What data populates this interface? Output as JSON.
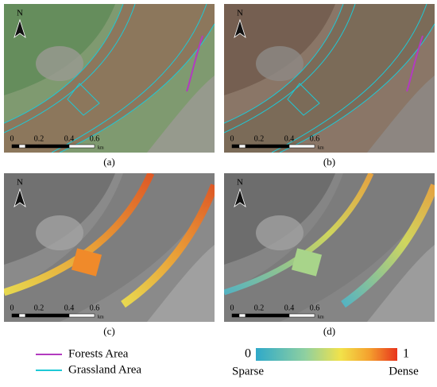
{
  "panels": [
    {
      "label": "(a)",
      "north": "N",
      "scale": {
        "ticks": [
          "0",
          "0.2",
          "0.4",
          "0.6"
        ],
        "unit": "km"
      }
    },
    {
      "label": "(b)",
      "north": "N",
      "scale": {
        "ticks": [
          "0",
          "0.2",
          "0.4",
          "0.6"
        ],
        "unit": "km"
      }
    },
    {
      "label": "(c)",
      "north": "N",
      "scale": {
        "ticks": [
          "0",
          "0.2",
          "0.4",
          "0.6"
        ],
        "unit": "km"
      }
    },
    {
      "label": "(d)",
      "north": "N",
      "scale": {
        "ticks": [
          "0",
          "0.2",
          "0.4",
          "0.6"
        ],
        "unit": "km"
      }
    }
  ],
  "legend": {
    "items": [
      "Forests Area",
      "Grassland Area"
    ]
  },
  "colorbar": {
    "min": "0",
    "max": "1",
    "low": "Sparse",
    "high": "Dense"
  }
}
